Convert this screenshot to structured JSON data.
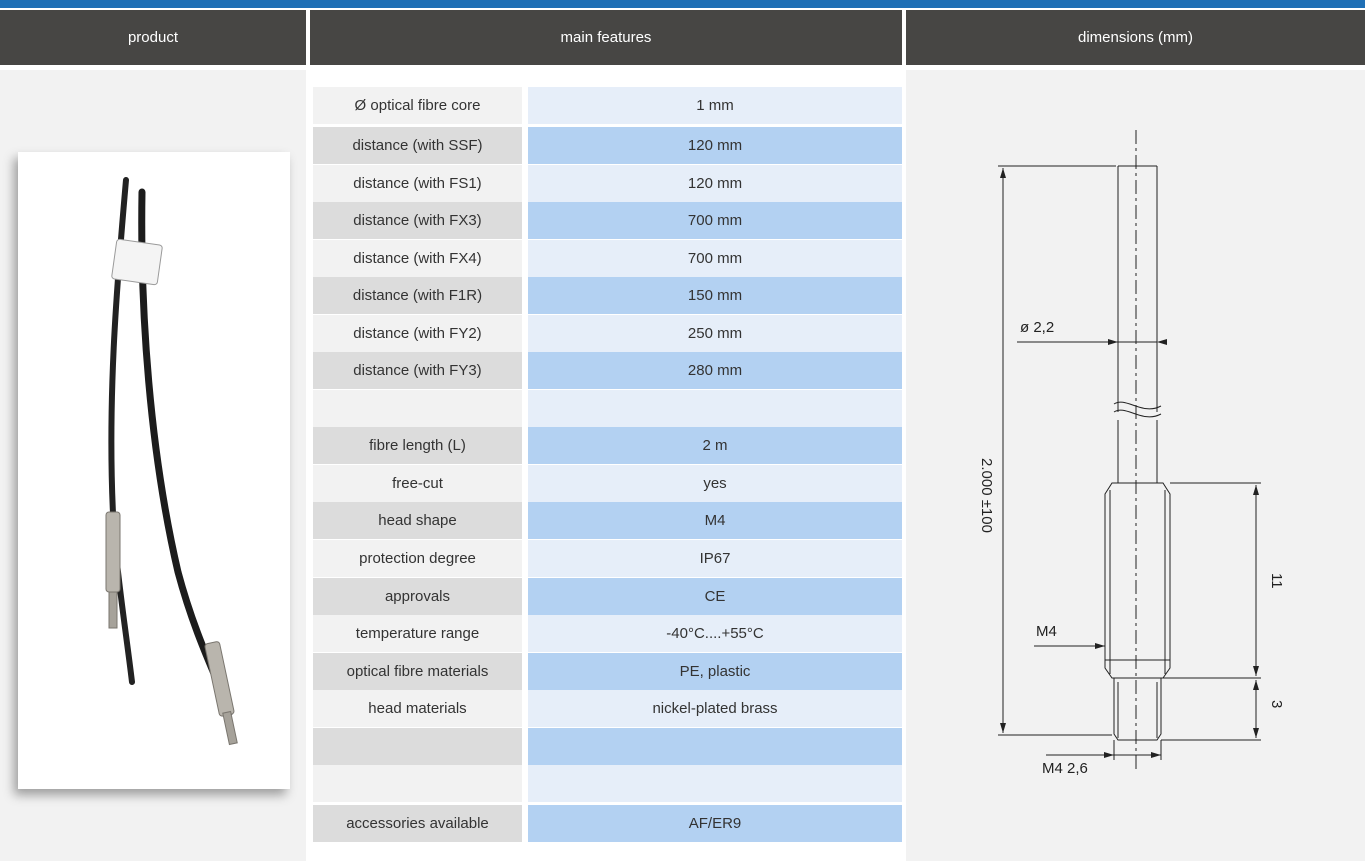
{
  "header": {
    "product": "product",
    "main_features": "main features",
    "dimensions": "dimensions (mm)"
  },
  "features": [
    {
      "label": "Ø optical fibre core",
      "value": "1 mm"
    },
    {
      "label": "distance (with SSF)",
      "value": "120 mm"
    },
    {
      "label": "distance (with FS1)",
      "value": "120 mm"
    },
    {
      "label": "distance (with FX3)",
      "value": "700 mm"
    },
    {
      "label": "distance (with FX4)",
      "value": "700 mm"
    },
    {
      "label": "distance (with F1R)",
      "value": "150 mm"
    },
    {
      "label": "distance (with FY2)",
      "value": "250 mm"
    },
    {
      "label": "distance (with FY3)",
      "value": "280 mm"
    },
    {
      "label": "",
      "value": ""
    },
    {
      "label": "fibre length (L)",
      "value": "2 m"
    },
    {
      "label": "free-cut",
      "value": "yes"
    },
    {
      "label": "head shape",
      "value": "M4"
    },
    {
      "label": "protection degree",
      "value": "IP67"
    },
    {
      "label": "approvals",
      "value": "CE"
    },
    {
      "label": "temperature range",
      "value": "-40°C....+55°C"
    },
    {
      "label": "optical fibre materials",
      "value": "PE, plastic"
    },
    {
      "label": "head materials",
      "value": "nickel-plated brass"
    },
    {
      "label": "",
      "value": ""
    },
    {
      "label": "",
      "value": ""
    },
    {
      "label": "accessories available",
      "value": "AF/ER9"
    }
  ],
  "drawing": {
    "diameter": "ø 2,2",
    "length": "2.000 ±100",
    "thread": "M4",
    "head_length": "11",
    "tip_length": "3",
    "tip_thread": "M4 2,6"
  }
}
